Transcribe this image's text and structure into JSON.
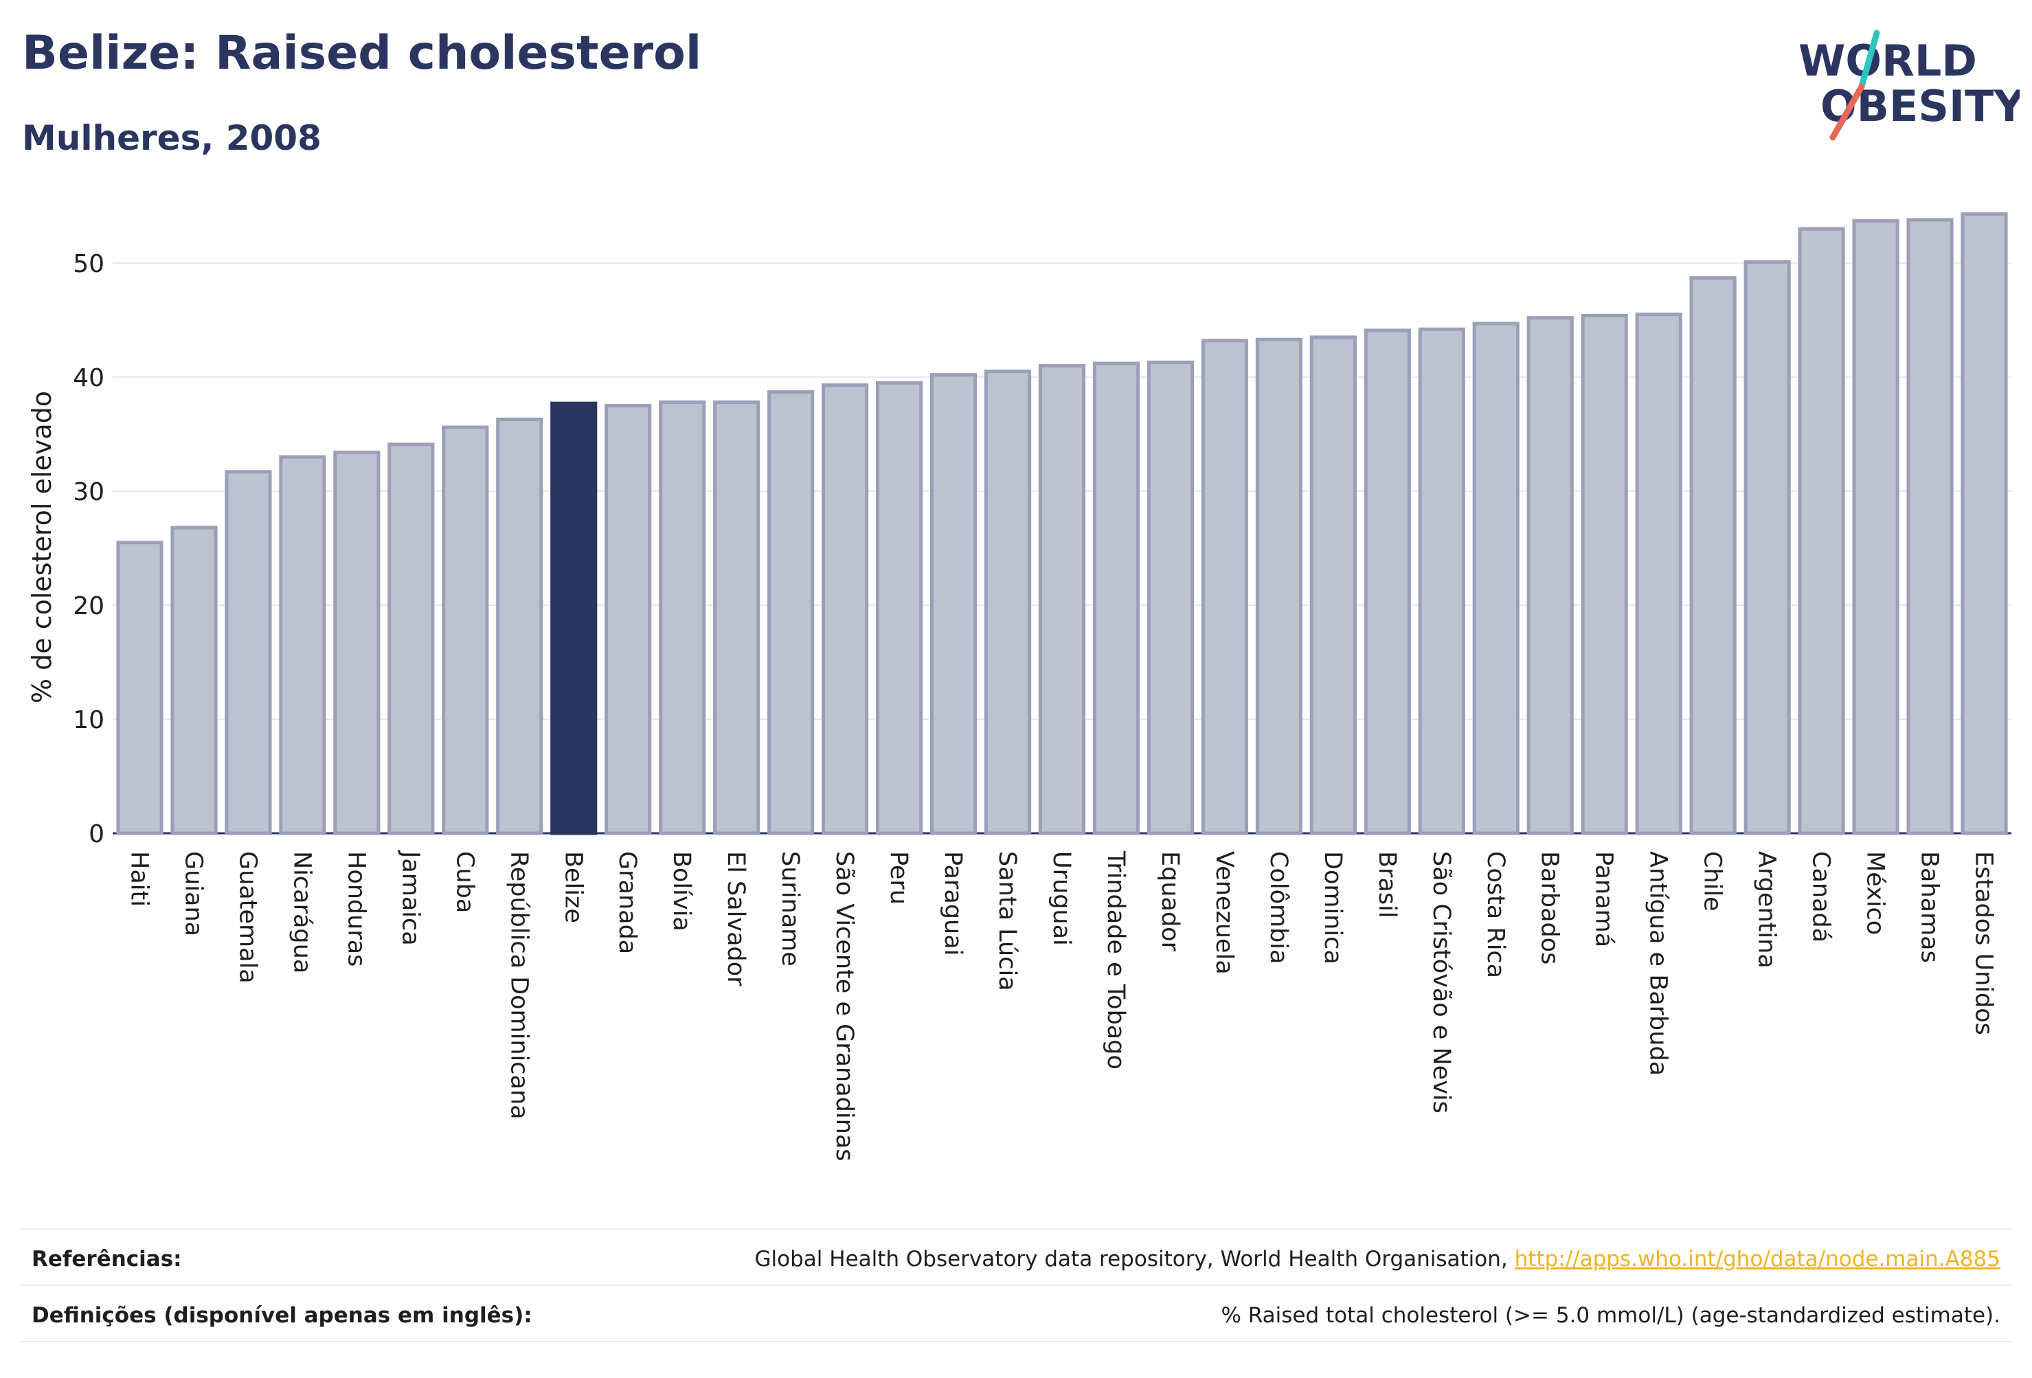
{
  "header": {
    "title": "Belize: Raised cholesterol",
    "subtitle": "Mulheres, 2008"
  },
  "logo": {
    "line1": "WORLD",
    "line2": "OBESITY",
    "text_color": "#2a3560",
    "accent_colors": [
      "#2ec4c0",
      "#e8685a"
    ]
  },
  "colors": {
    "bar_default": "#bec2cf",
    "bar_default_border": "#9aa0b8",
    "bar_highlight": "#2a3560",
    "axis_text": "#1e1e1e",
    "grid": "#e6e8ee",
    "baseline": "#2a3560"
  },
  "chart_data": {
    "type": "bar",
    "title": "Belize: Raised cholesterol",
    "subtitle": "Mulheres, 2008",
    "ylabel": "% de colesterol elevado",
    "xlabel": "",
    "ylim": [
      0,
      55
    ],
    "yticks": [
      0,
      10,
      20,
      30,
      40,
      50
    ],
    "grid": true,
    "highlight": "Belize",
    "categories": [
      "Haiti",
      "Guiana",
      "Guatemala",
      "Nicarágua",
      "Honduras",
      "Jamaica",
      "Cuba",
      "República Dominicana",
      "Belize",
      "Granada",
      "Bolívia",
      "El Salvador",
      "Suriname",
      "São Vicente e Granadinas",
      "Peru",
      "Paraguai",
      "Santa Lúcia",
      "Uruguai",
      "Trindade e Tobago",
      "Equador",
      "Venezuela",
      "Colômbia",
      "Dominica",
      "Brasil",
      "São Cristóvão e Nevis",
      "Costa Rica",
      "Barbados",
      "Panamá",
      "Antígua e Barbuda",
      "Chile",
      "Argentina",
      "Canadá",
      "México",
      "Bahamas",
      "Estados Unidos"
    ],
    "values": [
      25.5,
      26.8,
      31.7,
      33.0,
      33.4,
      34.1,
      35.6,
      36.3,
      37.7,
      37.5,
      37.8,
      37.8,
      38.7,
      39.3,
      39.5,
      40.2,
      40.5,
      41.0,
      41.2,
      41.3,
      43.2,
      43.3,
      43.5,
      44.1,
      44.2,
      44.7,
      45.2,
      45.4,
      45.5,
      48.7,
      50.1,
      53.0,
      53.7,
      53.8,
      54.3
    ]
  },
  "footer": {
    "references_label": "Referências:",
    "references_text": "Global Health Observatory data repository, World Health Organisation, ",
    "references_link": "http://apps.who.int/gho/data/node.main.A885",
    "definitions_label": "Definições (disponível apenas em inglês):",
    "definitions_text": "% Raised total cholesterol (>= 5.0 mmol/L) (age-standardized estimate)."
  }
}
